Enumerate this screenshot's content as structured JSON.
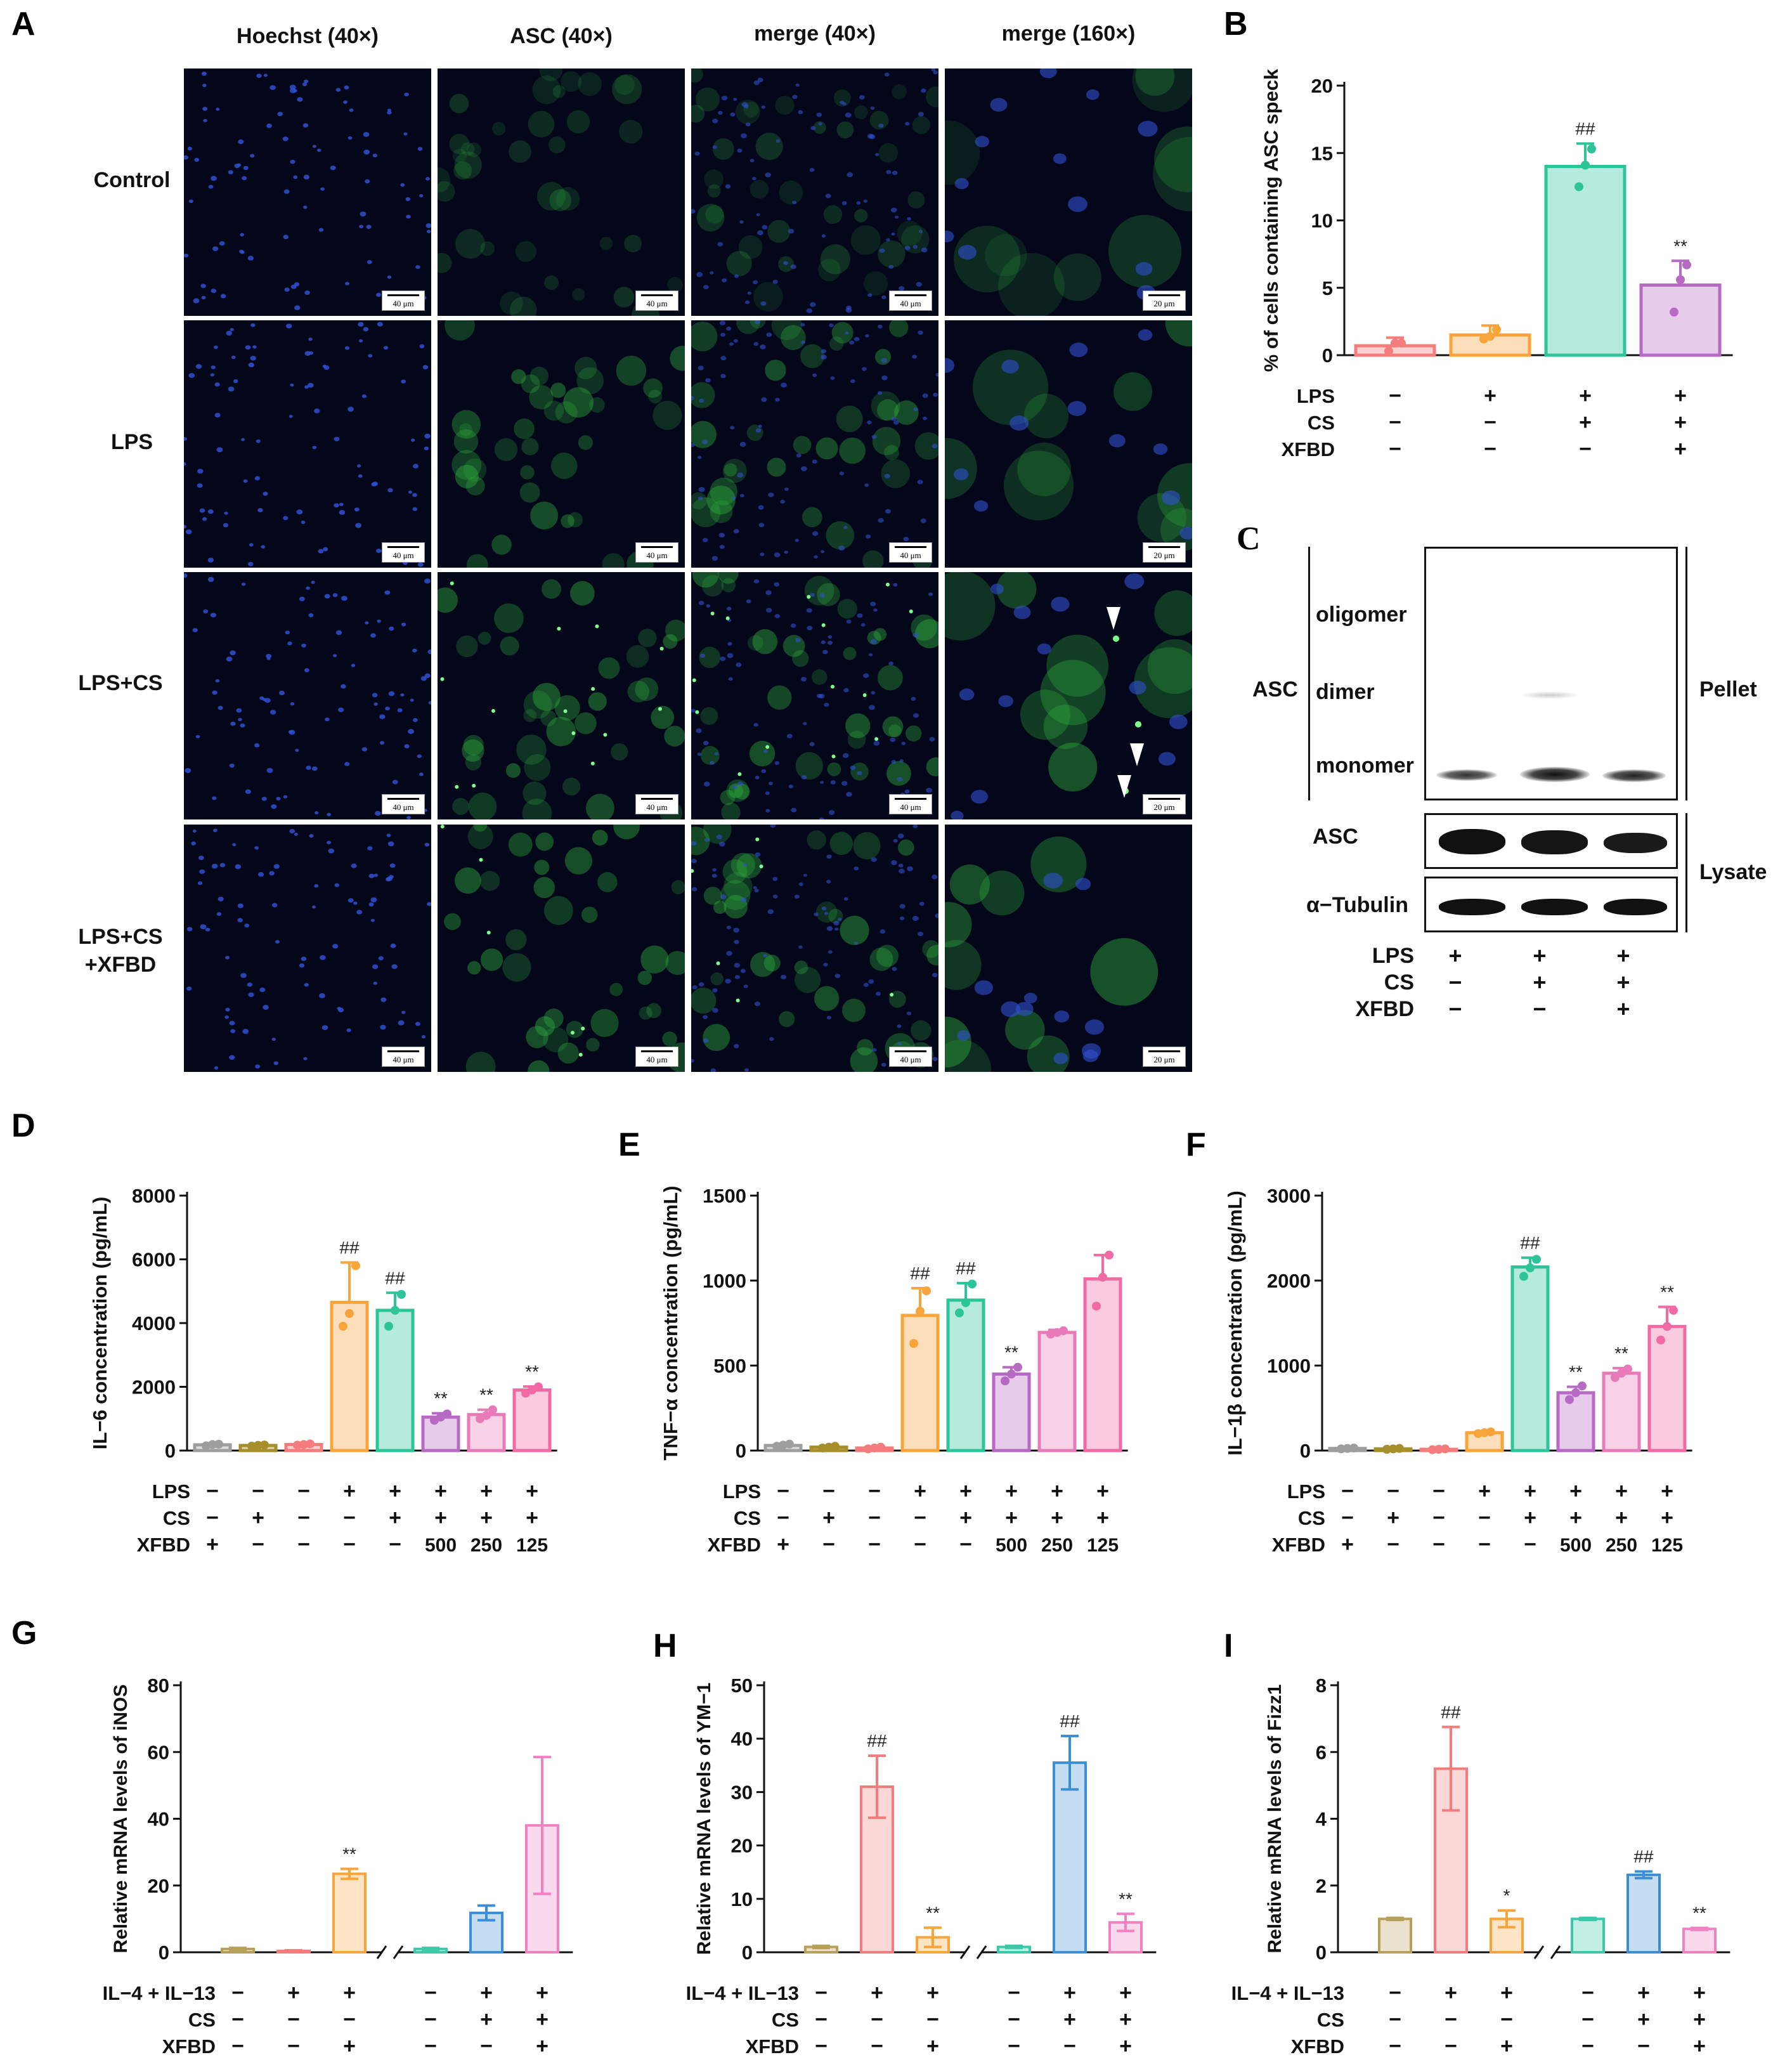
{
  "panels": {
    "A": "A",
    "B": "B",
    "C": "C",
    "D": "D",
    "E": "E",
    "F": "F",
    "G": "G",
    "H": "H",
    "I": "I"
  },
  "panel_a": {
    "columns": [
      "Hoechst (40×)",
      "ASC (40×)",
      "merge (40×)",
      "merge (160×)"
    ],
    "rows": [
      {
        "line1": "Control",
        "line2": ""
      },
      {
        "line1": "LPS",
        "line2": ""
      },
      {
        "line1": "LPS+CS",
        "line2": ""
      },
      {
        "line1": "LPS+CS",
        "line2": "+XFBD"
      }
    ],
    "scale_40x": "40 μm",
    "scale_160x": "20 μm",
    "colors": {
      "hoechst": "#3050d0",
      "asc": "#2fae3c",
      "background": "#04061a"
    }
  },
  "panel_c": {
    "pellet_group": "ASC",
    "bands": [
      "oligomer",
      "dimer",
      "monomer"
    ],
    "pellet_label": "Pellet",
    "lysate_rows": [
      "ASC",
      "α−Tubulin"
    ],
    "lysate_label": "Lysate",
    "conditions": [
      {
        "name": "LPS",
        "signs": [
          "+",
          "+",
          "+"
        ]
      },
      {
        "name": "CS",
        "signs": [
          "−",
          "+",
          "+"
        ]
      },
      {
        "name": "XFBD",
        "signs": [
          "−",
          "−",
          "+"
        ]
      }
    ]
  },
  "chart_data": [
    {
      "id": "B",
      "type": "bar",
      "ylabel": "% of cells containing ASC speck",
      "xlabel": "",
      "ylim": [
        0,
        20
      ],
      "yticks": [
        0,
        5,
        10,
        15,
        20
      ],
      "values": [
        0.7,
        1.5,
        14.0,
        5.2
      ],
      "errors": [
        0.6,
        0.7,
        1.7,
        1.8
      ],
      "colors": [
        "#f47c7c",
        "#f7a43a",
        "#2dc49a",
        "#b66ac4"
      ],
      "annotations": [
        "",
        "",
        "##",
        "**"
      ],
      "points": [
        [
          0.3,
          0.9,
          0.9
        ],
        [
          1.2,
          1.4,
          1.9
        ],
        [
          12.5,
          14.1,
          15.3
        ],
        [
          3.2,
          5.6,
          6.7
        ]
      ],
      "conditions": [
        {
          "name": "LPS",
          "signs": [
            "−",
            "+",
            "+",
            "+"
          ]
        },
        {
          "name": "CS",
          "signs": [
            "−",
            "−",
            "+",
            "+"
          ]
        },
        {
          "name": "XFBD",
          "signs": [
            "−",
            "−",
            "−",
            "+"
          ]
        }
      ]
    },
    {
      "id": "D",
      "type": "bar",
      "ylabel": "IL−6 concentration (pg/mL)",
      "xlabel": "",
      "ylim": [
        0,
        8000
      ],
      "yticks": [
        0,
        2000,
        4000,
        6000,
        8000
      ],
      "values": [
        180,
        160,
        190,
        4650,
        4400,
        1050,
        1130,
        1900
      ],
      "errors": [
        40,
        40,
        40,
        1250,
        550,
        120,
        150,
        110
      ],
      "colors": [
        "#9e9e9e",
        "#a68f2a",
        "#f47c7c",
        "#f7a43a",
        "#2dc49a",
        "#b66ac4",
        "#e77ab8",
        "#f26aa4"
      ],
      "annotations": [
        "",
        "",
        "",
        "##",
        "##",
        "**",
        "**",
        "**"
      ],
      "points": [
        [
          150,
          190,
          200
        ],
        [
          140,
          165,
          175
        ],
        [
          170,
          190,
          210
        ],
        [
          3900,
          4300,
          5800
        ],
        [
          3900,
          4400,
          4900
        ],
        [
          950,
          1050,
          1150
        ],
        [
          1000,
          1100,
          1280
        ],
        [
          1800,
          1900,
          2000
        ]
      ],
      "conditions": [
        {
          "name": "LPS",
          "signs": [
            "−",
            "−",
            "−",
            "+",
            "+",
            "+",
            "+",
            "+"
          ]
        },
        {
          "name": "CS",
          "signs": [
            "−",
            "+",
            "−",
            "−",
            "+",
            "+",
            "+",
            "+"
          ]
        },
        {
          "name": "XFBD",
          "signs": [
            "+",
            "−",
            "−",
            "−",
            "−",
            "500",
            "250",
            "125"
          ]
        }
      ]
    },
    {
      "id": "E",
      "type": "bar",
      "ylabel": "TNF−α concentration (pg/mL)",
      "xlabel": "",
      "ylim": [
        0,
        1500
      ],
      "yticks": [
        0,
        500,
        1000,
        1500
      ],
      "values": [
        30,
        20,
        15,
        795,
        885,
        450,
        695,
        1010
      ],
      "errors": [
        10,
        8,
        6,
        160,
        100,
        40,
        15,
        140
      ],
      "colors": [
        "#9e9e9e",
        "#a68f2a",
        "#f47c7c",
        "#f7a43a",
        "#2dc49a",
        "#b66ac4",
        "#e77ab8",
        "#f26aa4"
      ],
      "annotations": [
        "",
        "",
        "",
        "##",
        "##",
        "**",
        "",
        ""
      ],
      "points": [
        [
          25,
          32,
          38
        ],
        [
          15,
          20,
          25
        ],
        [
          10,
          15,
          20
        ],
        [
          630,
          820,
          940
        ],
        [
          810,
          870,
          980
        ],
        [
          410,
          450,
          490
        ],
        [
          685,
          695,
          705
        ],
        [
          850,
          1020,
          1150
        ]
      ],
      "conditions": [
        {
          "name": "LPS",
          "signs": [
            "−",
            "−",
            "−",
            "+",
            "+",
            "+",
            "+",
            "+"
          ]
        },
        {
          "name": "CS",
          "signs": [
            "−",
            "+",
            "−",
            "−",
            "+",
            "+",
            "+",
            "+"
          ]
        },
        {
          "name": "XFBD",
          "signs": [
            "+",
            "−",
            "−",
            "−",
            "−",
            "500",
            "250",
            "125"
          ]
        }
      ]
    },
    {
      "id": "F",
      "type": "bar",
      "ylabel": "IL−1β concentration (pg/mL)",
      "xlabel": "",
      "ylim": [
        0,
        3000
      ],
      "yticks": [
        0,
        1000,
        2000,
        3000
      ],
      "values": [
        25,
        20,
        15,
        210,
        2160,
        680,
        910,
        1460
      ],
      "errors": [
        8,
        6,
        5,
        15,
        110,
        70,
        60,
        230
      ],
      "colors": [
        "#9e9e9e",
        "#a68f2a",
        "#f47c7c",
        "#f7a43a",
        "#2dc49a",
        "#b66ac4",
        "#e77ab8",
        "#f26aa4"
      ],
      "annotations": [
        "",
        "",
        "",
        "",
        "##",
        "**",
        "**",
        "**"
      ],
      "points": [
        [
          20,
          25,
          30
        ],
        [
          15,
          20,
          25
        ],
        [
          10,
          15,
          20
        ],
        [
          200,
          210,
          220
        ],
        [
          2050,
          2150,
          2250
        ],
        [
          600,
          680,
          760
        ],
        [
          860,
          910,
          960
        ],
        [
          1300,
          1460,
          1650
        ]
      ],
      "conditions": [
        {
          "name": "LPS",
          "signs": [
            "−",
            "−",
            "−",
            "+",
            "+",
            "+",
            "+",
            "+"
          ]
        },
        {
          "name": "CS",
          "signs": [
            "−",
            "+",
            "−",
            "−",
            "+",
            "+",
            "+",
            "+"
          ]
        },
        {
          "name": "XFBD",
          "signs": [
            "+",
            "−",
            "−",
            "−",
            "−",
            "500",
            "250",
            "125"
          ]
        }
      ]
    },
    {
      "id": "G",
      "type": "bar",
      "ylabel": "Relative mRNA levels of iNOS",
      "xlabel": "",
      "ylim": [
        0,
        80
      ],
      "yticks": [
        0,
        20,
        40,
        60,
        80
      ],
      "values": [
        1.0,
        0.4,
        23.5,
        1.0,
        11.8,
        38.0
      ],
      "errors": [
        0.3,
        0.2,
        1.5,
        0.3,
        2.2,
        20.5
      ],
      "colors": [
        "#b8a05a",
        "#f47c7c",
        "#f7a43a",
        "#3cc9a9",
        "#3a8fd8",
        "#f281c3"
      ],
      "annotations": [
        "",
        "",
        "**",
        "",
        "",
        ""
      ],
      "conditions": [
        {
          "name": "IL−4 + IL−13",
          "signs": [
            "−",
            "+",
            "+",
            "−",
            "+",
            "+"
          ]
        },
        {
          "name": "CS",
          "signs": [
            "−",
            "−",
            "−",
            "−",
            "+",
            "+"
          ]
        },
        {
          "name": "XFBD",
          "signs": [
            "−",
            "−",
            "+",
            "−",
            "−",
            "+"
          ]
        }
      ]
    },
    {
      "id": "H",
      "type": "bar",
      "ylabel": "Relative mRNA levels of YM−1",
      "xlabel": "",
      "ylim": [
        0,
        50
      ],
      "yticks": [
        0,
        10,
        20,
        30,
        40,
        50
      ],
      "values": [
        1.0,
        31.0,
        2.8,
        1.0,
        35.5,
        5.6
      ],
      "errors": [
        0.2,
        5.8,
        1.8,
        0.2,
        5.0,
        1.6
      ],
      "colors": [
        "#b8a05a",
        "#f47c7c",
        "#f7a43a",
        "#3cc9a9",
        "#3a8fd8",
        "#f281c3"
      ],
      "annotations": [
        "",
        "##",
        "**",
        "",
        "##",
        "**"
      ],
      "conditions": [
        {
          "name": "IL−4 + IL−13",
          "signs": [
            "−",
            "+",
            "+",
            "−",
            "+",
            "+"
          ]
        },
        {
          "name": "CS",
          "signs": [
            "−",
            "−",
            "−",
            "−",
            "+",
            "+"
          ]
        },
        {
          "name": "XFBD",
          "signs": [
            "−",
            "−",
            "+",
            "−",
            "−",
            "+"
          ]
        }
      ]
    },
    {
      "id": "I",
      "type": "bar",
      "ylabel": "Relative mRNA levels of Fizz1",
      "xlabel": "",
      "ylim": [
        0,
        8
      ],
      "yticks": [
        0,
        2,
        4,
        6,
        8
      ],
      "values": [
        1.0,
        5.5,
        1.0,
        1.0,
        2.32,
        0.7
      ],
      "errors": [
        0.03,
        1.25,
        0.25,
        0.03,
        0.1,
        0.03
      ],
      "colors": [
        "#b8a05a",
        "#f47c7c",
        "#f7a43a",
        "#3cc9a9",
        "#3a8fd8",
        "#f281c3"
      ],
      "annotations": [
        "",
        "##",
        "*",
        "",
        "##",
        "**"
      ],
      "conditions": [
        {
          "name": "IL−4 + IL−13",
          "signs": [
            "−",
            "+",
            "+",
            "−",
            "+",
            "+"
          ]
        },
        {
          "name": "CS",
          "signs": [
            "−",
            "−",
            "−",
            "−",
            "+",
            "+"
          ]
        },
        {
          "name": "XFBD",
          "signs": [
            "−",
            "−",
            "+",
            "−",
            "−",
            "+"
          ]
        }
      ]
    }
  ]
}
